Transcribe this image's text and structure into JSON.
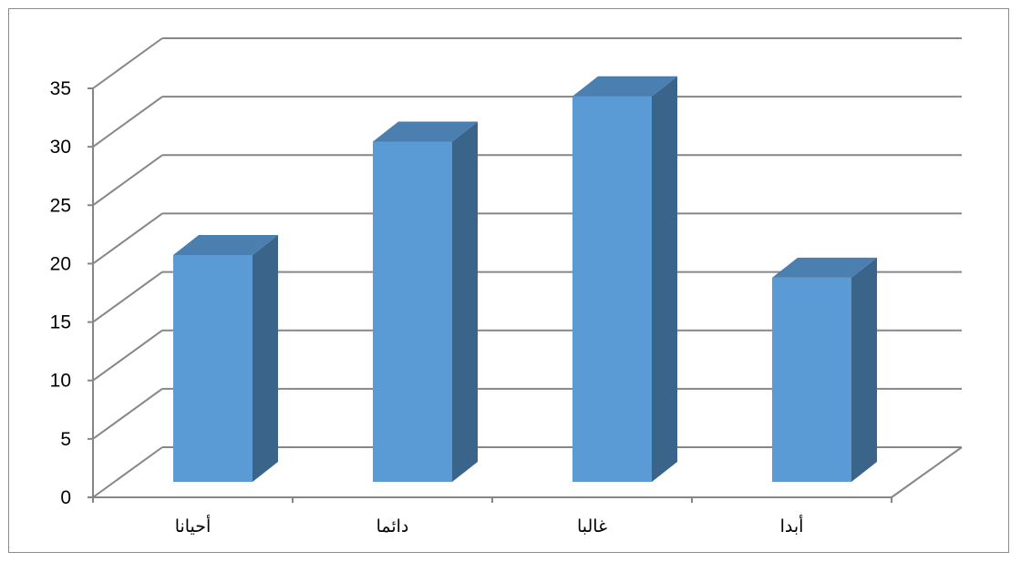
{
  "chart_data": {
    "type": "bar",
    "style": "3d-column",
    "categories": [
      "أحيانا",
      "دائما",
      "غالبا",
      "أبدا"
    ],
    "series": [
      {
        "values": [
          20,
          30,
          34,
          18
        ]
      }
    ],
    "ylim": [
      0,
      35
    ],
    "yticks": [
      0,
      5,
      10,
      15,
      20,
      25,
      30,
      35
    ],
    "grid": true,
    "legend": "none",
    "colors": {
      "front": "#5b9bd5",
      "side": "#3a6489",
      "top": "#4a7fb0",
      "grid": "#868686",
      "axis": "#868686"
    }
  }
}
